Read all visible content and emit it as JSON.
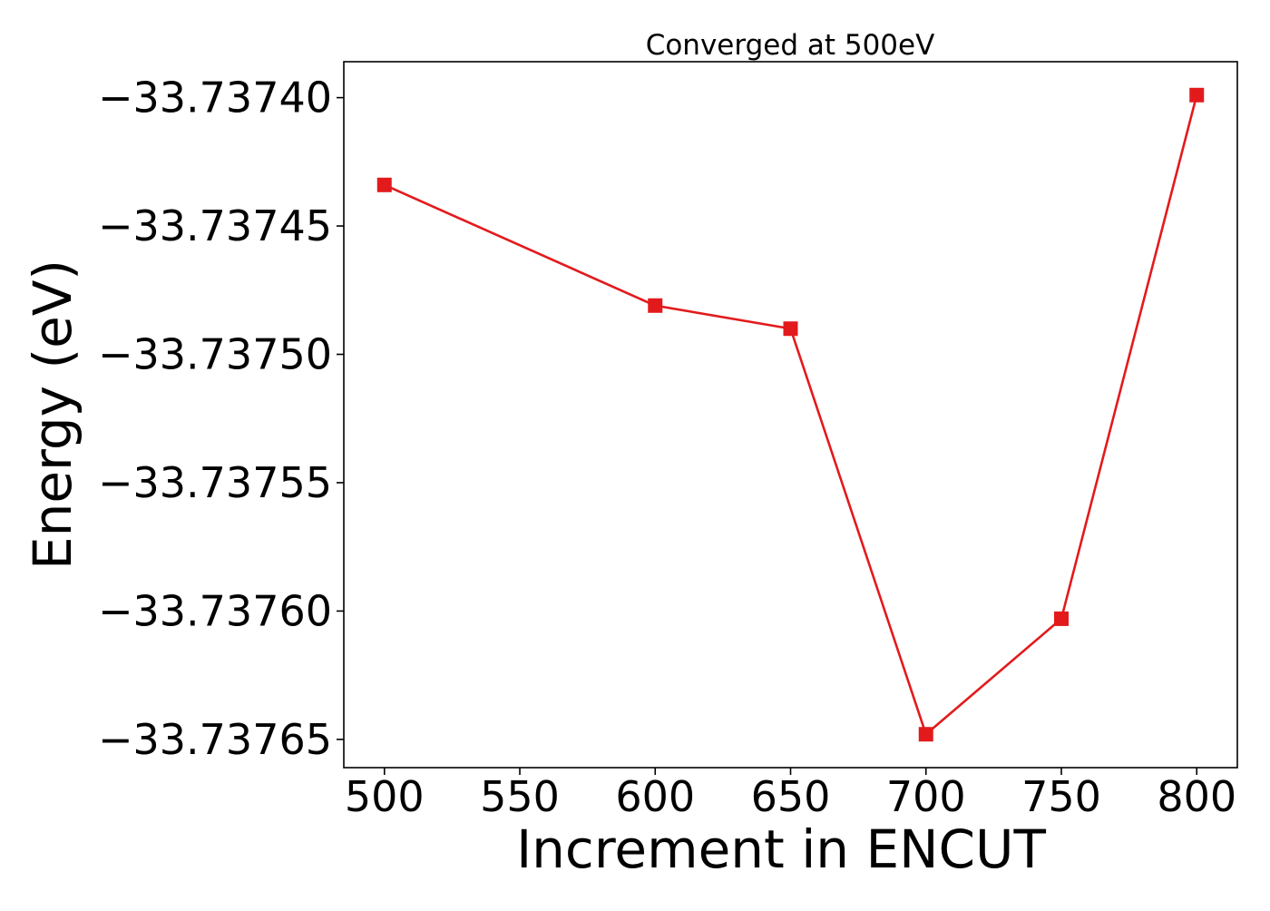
{
  "chart_data": {
    "type": "line",
    "title": "Converged at 500eV",
    "xlabel": "Increment in ENCUT",
    "ylabel": "Energy (eV)",
    "x": [
      500,
      600,
      650,
      700,
      750,
      800
    ],
    "series": [
      {
        "values": [
          -33.737434,
          -33.737481,
          -33.73749,
          -33.737648,
          -33.737603,
          -33.737399
        ],
        "color": "#e31a1c",
        "marker": "square"
      }
    ],
    "xlim": [
      485,
      815
    ],
    "ylim": [
      -33.737661,
      -33.737386
    ],
    "xticks": [
      500,
      550,
      600,
      650,
      700,
      750,
      800
    ],
    "xtick_labels": [
      "500",
      "550",
      "600",
      "650",
      "700",
      "750",
      "800"
    ],
    "yticks": [
      -33.73765,
      -33.7376,
      -33.73755,
      -33.7375,
      -33.73745,
      -33.7374
    ],
    "ytick_labels": [
      "−33.73765",
      "−33.73760",
      "−33.73755",
      "−33.73750",
      "−33.73745",
      "−33.73740"
    ],
    "grid": false,
    "legend": "none"
  }
}
